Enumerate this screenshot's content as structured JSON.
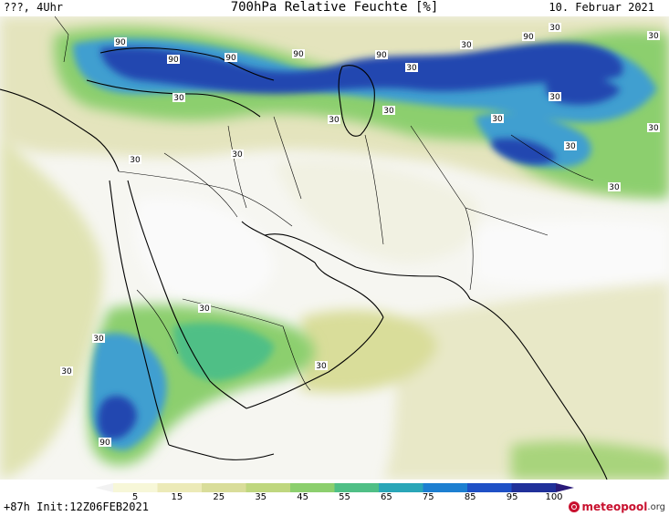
{
  "header": {
    "left": "???, 4Uhr",
    "title": "700hPa Relative Feuchte [%]",
    "date": "10. Februar 2021"
  },
  "footer": {
    "init": "+87h Init:12Z06FEB2021",
    "logo_main": "meteopool",
    "logo_suffix": ".org"
  },
  "colorbar": {
    "ticks": [
      "5",
      "15",
      "25",
      "35",
      "45",
      "55",
      "65",
      "75",
      "85",
      "95",
      "100"
    ],
    "colors": [
      "#f2f2f2",
      "#f7f7d8",
      "#eceab8",
      "#d9dd9a",
      "#bfd77f",
      "#8ccf6e",
      "#4fbf86",
      "#2aa6b8",
      "#1d7fd1",
      "#1f50c6",
      "#20309a",
      "#2a1a7a"
    ]
  },
  "contour_labels": {
    "values": [
      "90",
      "90",
      "90",
      "90",
      "90",
      "90",
      "30",
      "30",
      "30",
      "30",
      "30",
      "30",
      "30",
      "30",
      "30",
      "30",
      "30",
      "30",
      "30",
      "30",
      "30",
      "30",
      "30",
      "30",
      "90"
    ]
  },
  "colors": {
    "very_wet": "#2a4fb8",
    "wet": "#3f9fd0",
    "moist": "#8ccf6e",
    "mid": "#d9dd9a",
    "dry": "#f0f0e4",
    "very_dry": "#f8f8f8",
    "logo_red": "#c8102e"
  }
}
